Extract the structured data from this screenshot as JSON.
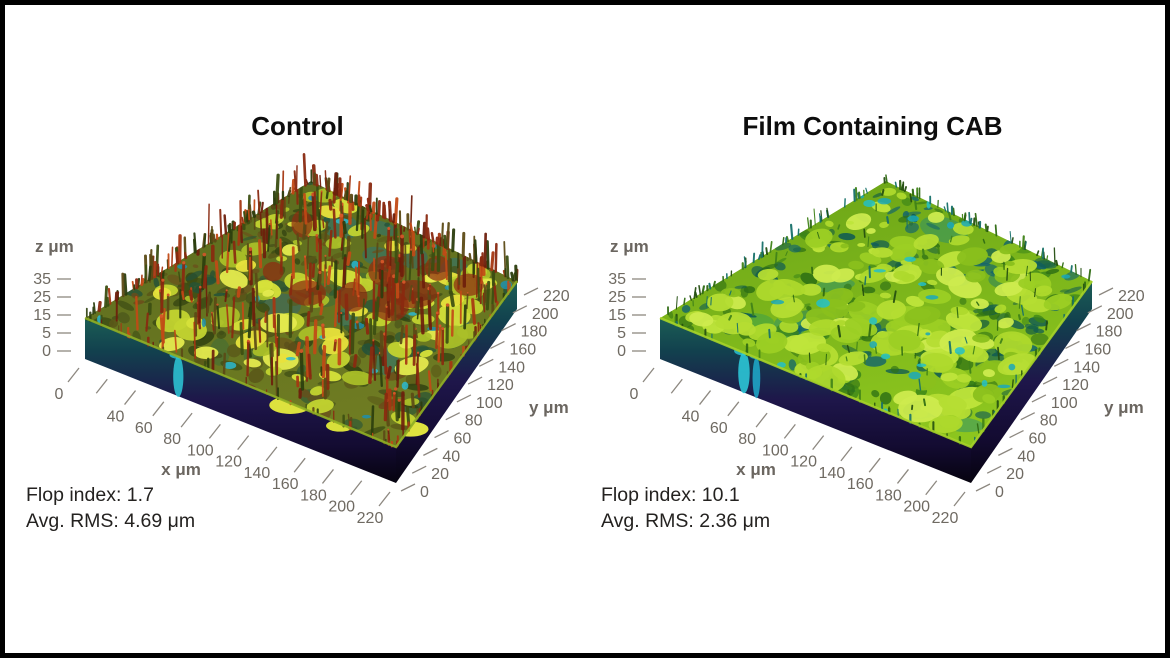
{
  "frame": {
    "background": "#ffffff",
    "border_color": "#000000"
  },
  "axis_style": {
    "tick_color": "#8d8880",
    "tick_label_color": "#6f6a62",
    "unit_label_color": "#6b6660",
    "title_color": "#0d0d0d",
    "annotation_color": "#242220"
  },
  "slab_gradient": [
    "#1b5e55",
    "#12414e",
    "#1e164a",
    "#130b31",
    "#06030f"
  ],
  "chart_data": [
    {
      "type": "heatmap",
      "variant": "3D surface topography (optical profilometry)",
      "title": "Control",
      "xlabel": "x μm",
      "ylabel": "y μm",
      "zlabel": "z μm",
      "x_range_um": [
        0,
        220
      ],
      "y_range_um": [
        0,
        220
      ],
      "z_range_um": [
        0,
        35
      ],
      "x_tick_values": [
        0,
        20,
        40,
        60,
        80,
        100,
        120,
        140,
        160,
        180,
        200,
        220
      ],
      "x_tick_labels": [
        "0",
        "",
        "40",
        "60",
        "80",
        "100",
        "120",
        "140",
        "160",
        "180",
        "200",
        "220"
      ],
      "y_tick_values": [
        0,
        20,
        40,
        60,
        80,
        100,
        120,
        140,
        160,
        180,
        200,
        220
      ],
      "y_tick_labels": [
        "0",
        "20",
        "40",
        "60",
        "80",
        "100",
        "120",
        "140",
        "160",
        "180",
        "200",
        "220"
      ],
      "z_tick_labels": [
        "35",
        "25",
        "15",
        "5",
        "0"
      ],
      "metrics": {
        "flop_index": 1.7,
        "avg_rms_um": 4.69
      },
      "annotations": {
        "line1": "Flop index: 1.7",
        "line2": "Avg. RMS: 4.69 μm"
      },
      "surface": {
        "seed": 7,
        "description": "rough spiky surface: olive base, yellow flakes, dense red-brown peaks, cyan pits",
        "base_colors": [
          "#5a6a1e",
          "#6f7c22"
        ],
        "patch_colors": [
          "#1f7488",
          "#27647a",
          "#356a3c"
        ],
        "patch_count": 14,
        "mottle_colors": [
          "#3e4d14",
          "#2f3f10",
          "#5a5718",
          "#6b4c1a",
          "#245238",
          "#46501a"
        ],
        "mottle_count": 270,
        "flake_colors": [
          "#d6e23a",
          "#e4ea4e",
          "#c3d430",
          "#aabf28",
          "#e8e13c"
        ],
        "flake_count": 95,
        "speck_colors": [
          "#2cb9cf",
          "#1f8fae"
        ],
        "speck_count": 20,
        "spike_colors": [
          "#8a2a10",
          "#a63712",
          "#c24a16",
          "#6e1f0c",
          "#8a2a10",
          "#3c4f12",
          "#2c3e0e",
          "#5c4a16"
        ],
        "spike_count": 330,
        "spike_h": [
          7,
          40
        ],
        "spike_w": [
          1.4,
          3.6
        ],
        "tip_color": "#d85a2a",
        "cluster_color": "#8d2c10",
        "cluster_count": 9,
        "fringe_count": 175,
        "fringe_h": 36,
        "front_fringe": 70,
        "rim_color": "#8fae24",
        "wall_marks": [
          {
            "kind": "drip",
            "edge": "left",
            "p": 0.3,
            "size": 16,
            "color": "#2cc4d4"
          },
          {
            "kind": "flake",
            "edge": "left",
            "p": 0.66,
            "size": 21,
            "color": "#e3e83e"
          },
          {
            "kind": "flake",
            "edge": "left",
            "p": 0.82,
            "size": 14,
            "color": "#dfe63a"
          },
          {
            "kind": "flake",
            "edge": "right",
            "p": 0.12,
            "size": 18,
            "color": "#e6e940"
          }
        ]
      }
    },
    {
      "type": "heatmap",
      "variant": "3D surface topography (optical profilometry)",
      "title": "Film Containing CAB",
      "xlabel": "x μm",
      "ylabel": "y μm",
      "zlabel": "z μm",
      "x_range_um": [
        0,
        220
      ],
      "y_range_um": [
        0,
        220
      ],
      "z_range_um": [
        0,
        35
      ],
      "x_tick_values": [
        0,
        20,
        40,
        60,
        80,
        100,
        120,
        140,
        160,
        180,
        200,
        220
      ],
      "x_tick_labels": [
        "0",
        "",
        "40",
        "60",
        "80",
        "100",
        "120",
        "140",
        "160",
        "180",
        "200",
        "220"
      ],
      "y_tick_values": [
        0,
        20,
        40,
        60,
        80,
        100,
        120,
        140,
        160,
        180,
        200,
        220
      ],
      "y_tick_labels": [
        "0",
        "20",
        "40",
        "60",
        "80",
        "100",
        "120",
        "140",
        "160",
        "180",
        "200",
        "220"
      ],
      "z_tick_labels": [
        "35",
        "25",
        "15",
        "5",
        "0"
      ],
      "metrics": {
        "flop_index": 10.1,
        "avg_rms_um": 2.36
      },
      "annotations": {
        "line1": "Flop index: 10.1",
        "line2": "Avg. RMS: 2.36 μm"
      },
      "surface": {
        "seed": 13,
        "description": "flatter cobblestone flakes, uniform bright yellow-green, cyan cracks, sparse tiny spikes",
        "base_colors": [
          "#6aa317",
          "#8cc51e"
        ],
        "patch_colors": [
          "#1e8a78",
          "#2e9c54",
          "#17756b"
        ],
        "patch_count": 10,
        "mottle_colors": [
          "#2e7014",
          "#256b3a",
          "#14656a",
          "#0f5a52",
          "#3a8418",
          "#2e7014"
        ],
        "mottle_count": 220,
        "flake_colors": [
          "#aed92c",
          "#bfe53b",
          "#9ccf24",
          "#cdeb4e",
          "#8ac01c",
          "#b5dd33"
        ],
        "flake_count": 175,
        "speck_colors": [
          "#23bfc7",
          "#1ba8b8"
        ],
        "speck_count": 26,
        "spike_colors": [
          "#2f6b12",
          "#3f8218",
          "#17706a",
          "#244f10"
        ],
        "spike_count": 70,
        "spike_h": [
          3,
          12
        ],
        "spike_w": [
          1.0,
          2.2
        ],
        "tip_color": "",
        "cluster_color": "",
        "cluster_count": 0,
        "fringe_count": 95,
        "fringe_h": 13,
        "front_fringe": 40,
        "rim_color": "#a6d327",
        "wall_marks": [
          {
            "kind": "drip",
            "edge": "left",
            "p": 0.27,
            "size": 18,
            "color": "#2cc9d9"
          },
          {
            "kind": "drip",
            "edge": "left",
            "p": 0.31,
            "size": 12,
            "color": "#1fa8c8"
          }
        ]
      }
    }
  ]
}
